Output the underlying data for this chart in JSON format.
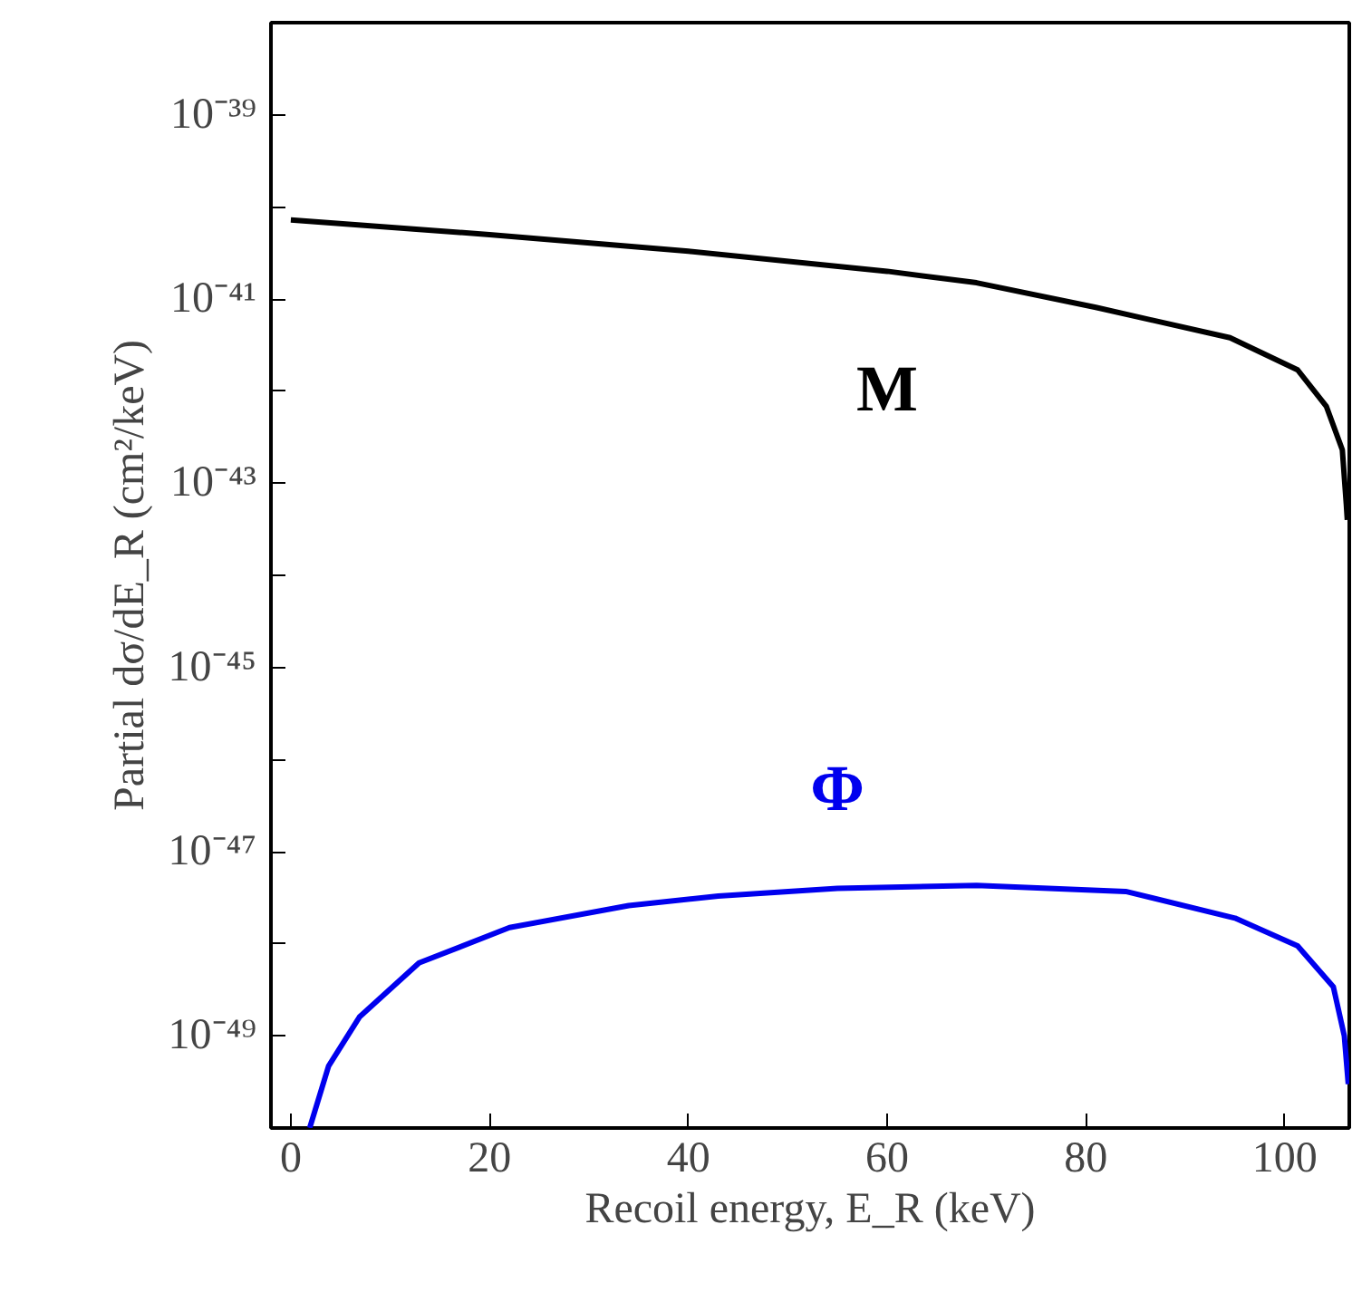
{
  "chart_data": {
    "type": "line",
    "xlabel": "Recoil energy, E_R (keV)",
    "ylabel": "Partial dσ/dE_R (cm²/keV)",
    "log": "y",
    "grid": false,
    "legend": false,
    "line_style": "solid",
    "marker": "none",
    "xlim": [
      -2,
      106.5
    ],
    "ylim": [
      1e-50,
      1e-38
    ],
    "xticks": [
      0,
      20,
      40,
      60,
      80,
      100
    ],
    "yticks": [
      {
        "value": 1e-49,
        "label": "10⁻⁴⁹"
      },
      {
        "value": 1e-48,
        "label": null
      },
      {
        "value": 1e-47,
        "label": "10⁻⁴⁷"
      },
      {
        "value": 1e-46,
        "label": null
      },
      {
        "value": 1e-45,
        "label": "10⁻⁴⁵"
      },
      {
        "value": 1e-44,
        "label": null
      },
      {
        "value": 1e-43,
        "label": "10⁻⁴³"
      },
      {
        "value": 1e-42,
        "label": null
      },
      {
        "value": 1e-41,
        "label": "10⁻⁴¹"
      },
      {
        "value": 1e-40,
        "label": null
      },
      {
        "value": 1e-39,
        "label": "10⁻³⁹"
      }
    ],
    "series": [
      {
        "name": "M",
        "color": "#000000",
        "x": [
          0,
          20,
          40,
          60,
          69,
          81,
          94.5,
          101.3,
          104.2,
          105.8,
          106.2,
          106.3
        ],
        "values": [
          7.2e-41,
          5e-41,
          3.3e-41,
          2e-41,
          1.5e-41,
          8.1e-42,
          3.8e-42,
          1.7e-42,
          6.8e-43,
          2.3e-43,
          5.9e-44,
          4e-44
        ]
      },
      {
        "name": "Φ",
        "color": "#0000ee",
        "x": [
          1.9,
          3.8,
          6.9,
          12.9,
          22,
          34,
          43,
          55,
          69,
          84,
          95,
          101.3,
          104.9,
          106,
          106.4
        ],
        "values": [
          1e-50,
          4.7e-50,
          1.6e-49,
          6.2e-49,
          1.5e-48,
          2.6e-48,
          3.3e-48,
          4e-48,
          4.3e-48,
          3.7e-48,
          1.9e-48,
          9.5e-49,
          3.4e-49,
          1e-49,
          3e-50
        ]
      }
    ]
  }
}
